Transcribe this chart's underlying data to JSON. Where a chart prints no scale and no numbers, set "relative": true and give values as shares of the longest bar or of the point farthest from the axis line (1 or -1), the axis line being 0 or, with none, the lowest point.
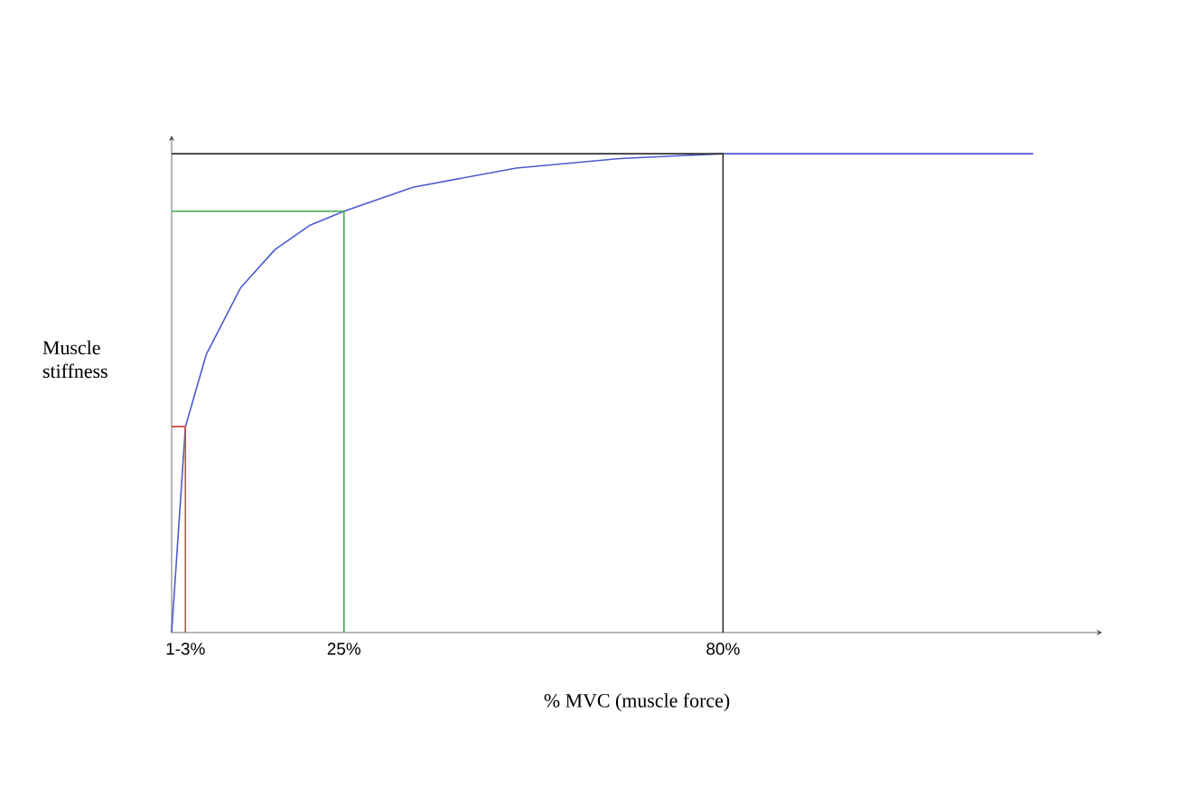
{
  "chart_data": {
    "type": "line",
    "relative": true,
    "xlabel": "% MVC (muscle force)",
    "ylabel": "Muscle stiffness",
    "xlim": [
      0,
      135
    ],
    "xticks": [
      {
        "value": 2,
        "label": "1-3%"
      },
      {
        "value": 25,
        "label": "25%"
      },
      {
        "value": 80,
        "label": "80%"
      }
    ],
    "series": [
      {
        "color": "#4a5bd0",
        "x": [
          0,
          2,
          5,
          10,
          15,
          20,
          25,
          35,
          50,
          65,
          80,
          125
        ],
        "values": [
          0,
          0.43,
          0.58,
          0.72,
          0.8,
          0.85,
          0.88,
          0.93,
          0.97,
          0.99,
          1,
          1
        ]
      },
      {
        "color": "#d9453a",
        "x": [
          0,
          2,
          2
        ],
        "values": [
          0.43,
          0.43,
          0
        ]
      },
      {
        "color": "#3aa84a",
        "x": [
          0,
          25,
          25
        ],
        "values": [
          0.88,
          0.88,
          0
        ]
      },
      {
        "color": "#333333",
        "x": [
          0,
          80,
          80
        ],
        "values": [
          1,
          1,
          0
        ]
      }
    ]
  }
}
